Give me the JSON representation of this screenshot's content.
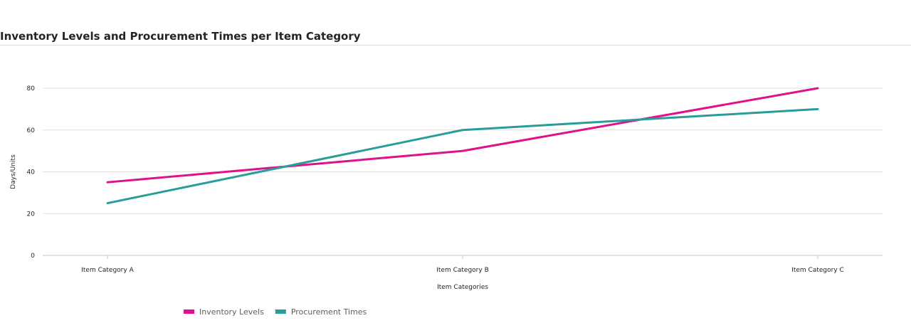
{
  "title": "Inventory Levels and Procurement Times per Item Category",
  "chart_data": {
    "type": "line",
    "title": "Inventory Levels and Procurement Times per Item Category",
    "xlabel": "Item Categories",
    "ylabel": "Days/Units",
    "categories": [
      "Item Category A",
      "Item Category B",
      "Item Category C"
    ],
    "ylim": [
      0,
      80
    ],
    "yticks": [
      0,
      20,
      40,
      60,
      80
    ],
    "grid": true,
    "legend_position": "bottom-left",
    "series": [
      {
        "name": "Inventory Levels",
        "color": "#e0118a",
        "values": [
          35,
          50,
          80
        ]
      },
      {
        "name": "Procurement Times",
        "color": "#2a9d9a",
        "values": [
          25,
          60,
          70
        ]
      }
    ]
  }
}
